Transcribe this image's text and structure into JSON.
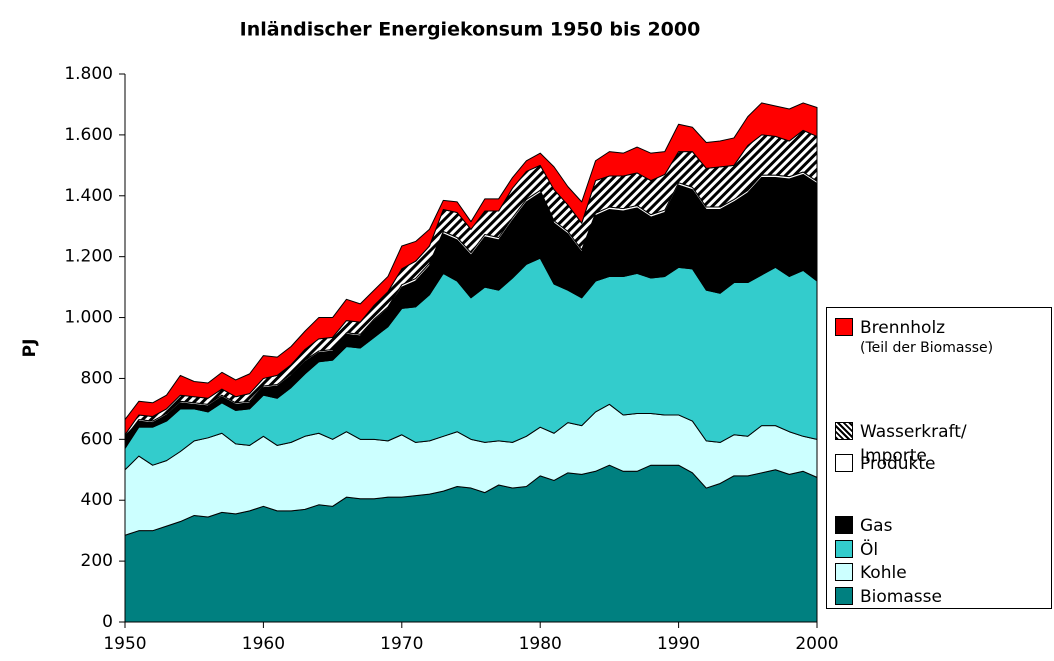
{
  "chart_data": {
    "type": "stacked_area",
    "title": "Inländischer Energiekonsum 1950 bis 2000",
    "y_label": "PJ",
    "legend_note": "(Teil der Biomasse)",
    "legend_position": "right",
    "x": [
      1950,
      1951,
      1952,
      1953,
      1954,
      1955,
      1956,
      1957,
      1958,
      1959,
      1960,
      1961,
      1962,
      1963,
      1964,
      1965,
      1966,
      1967,
      1968,
      1969,
      1970,
      1971,
      1972,
      1973,
      1974,
      1975,
      1976,
      1977,
      1978,
      1979,
      1980,
      1981,
      1982,
      1983,
      1984,
      1985,
      1986,
      1987,
      1988,
      1989,
      1990,
      1991,
      1992,
      1993,
      1994,
      1995,
      1996,
      1997,
      1998,
      1999,
      2000
    ],
    "xlim": [
      1950,
      2000
    ],
    "xticks": [
      1950,
      1960,
      1970,
      1980,
      1990,
      2000
    ],
    "ylim": [
      0,
      1800
    ],
    "yticks": [
      0,
      200,
      400,
      600,
      800,
      {
        "value": 1000,
        "label": "1.000"
      },
      {
        "value": 1200,
        "label": "1.200"
      },
      {
        "value": 1400,
        "label": "1.400"
      },
      {
        "value": 1600,
        "label": "1.600"
      },
      {
        "value": 1800,
        "label": "1.800"
      }
    ],
    "series": [
      {
        "name": "Biomasse",
        "color": "#008080",
        "values": [
          285,
          300,
          300,
          315,
          330,
          350,
          345,
          360,
          355,
          365,
          380,
          365,
          365,
          370,
          385,
          380,
          410,
          405,
          405,
          410,
          410,
          415,
          420,
          430,
          445,
          440,
          425,
          450,
          440,
          445,
          480,
          465,
          490,
          485,
          495,
          515,
          495,
          495,
          515,
          515,
          515,
          490,
          440,
          455,
          480,
          480,
          490,
          500,
          485,
          495,
          475
        ]
      },
      {
        "name": "Kohle",
        "color": "#ccffff",
        "values": [
          215,
          245,
          215,
          215,
          230,
          245,
          260,
          260,
          230,
          215,
          230,
          215,
          225,
          240,
          235,
          220,
          215,
          195,
          195,
          185,
          205,
          175,
          175,
          180,
          180,
          160,
          165,
          145,
          150,
          165,
          160,
          155,
          165,
          160,
          195,
          200,
          185,
          190,
          170,
          165,
          165,
          170,
          155,
          135,
          135,
          130,
          155,
          145,
          140,
          115,
          125
        ]
      },
      {
        "name": "Öl",
        "color": "#33cccc",
        "values": [
          70,
          95,
          125,
          130,
          140,
          105,
          85,
          100,
          110,
          120,
          135,
          155,
          180,
          205,
          235,
          260,
          280,
          300,
          335,
          375,
          415,
          445,
          480,
          535,
          495,
          465,
          510,
          495,
          540,
          565,
          555,
          490,
          435,
          420,
          430,
          420,
          455,
          460,
          445,
          455,
          485,
          500,
          495,
          490,
          500,
          505,
          495,
          520,
          510,
          545,
          520
        ]
      },
      {
        "name": "Gas",
        "color": "#000000",
        "values": [
          30,
          20,
          15,
          20,
          20,
          15,
          20,
          20,
          20,
          20,
          25,
          40,
          40,
          40,
          30,
          30,
          40,
          40,
          55,
          60,
          70,
          85,
          95,
          130,
          135,
          140,
          165,
          165,
          190,
          205,
          215,
          200,
          185,
          150,
          215,
          220,
          215,
          215,
          200,
          210,
          270,
          260,
          265,
          275,
          265,
          295,
          320,
          295,
          320,
          315,
          320
        ]
      },
      {
        "name": "Produkte",
        "color": "#ffffff",
        "values": [
          5,
          5,
          5,
          5,
          5,
          5,
          5,
          5,
          5,
          5,
          5,
          5,
          5,
          5,
          5,
          5,
          5,
          5,
          5,
          5,
          8,
          8,
          8,
          8,
          8,
          8,
          8,
          8,
          8,
          8,
          8,
          8,
          8,
          8,
          8,
          8,
          8,
          8,
          8,
          8,
          8,
          8,
          8,
          8,
          8,
          8,
          8,
          8,
          8,
          8,
          8
        ]
      },
      {
        "name": "Wasserkraft/ Importe",
        "color": "#808080",
        "pattern": "hatch",
        "values": [
          10,
          15,
          15,
          15,
          20,
          20,
          20,
          20,
          20,
          25,
          25,
          30,
          30,
          35,
          40,
          40,
          40,
          40,
          45,
          50,
          52,
          57,
          57,
          72,
          82,
          77,
          77,
          87,
          97,
          92,
          82,
          102,
          87,
          87,
          107,
          102,
          107,
          107,
          112,
          117,
          102,
          117,
          127,
          132,
          112,
          147,
          132,
          127,
          117,
          137,
          147
        ]
      },
      {
        "name": "Brennholz",
        "color": "#ff0000",
        "values": [
          50,
          45,
          45,
          45,
          65,
          50,
          50,
          55,
          55,
          65,
          75,
          60,
          60,
          60,
          70,
          65,
          70,
          60,
          50,
          50,
          75,
          65,
          55,
          30,
          35,
          25,
          40,
          40,
          35,
          35,
          40,
          75,
          60,
          70,
          65,
          80,
          75,
          85,
          90,
          75,
          90,
          80,
          85,
          85,
          90,
          95,
          105,
          100,
          105,
          90,
          95
        ]
      }
    ]
  }
}
